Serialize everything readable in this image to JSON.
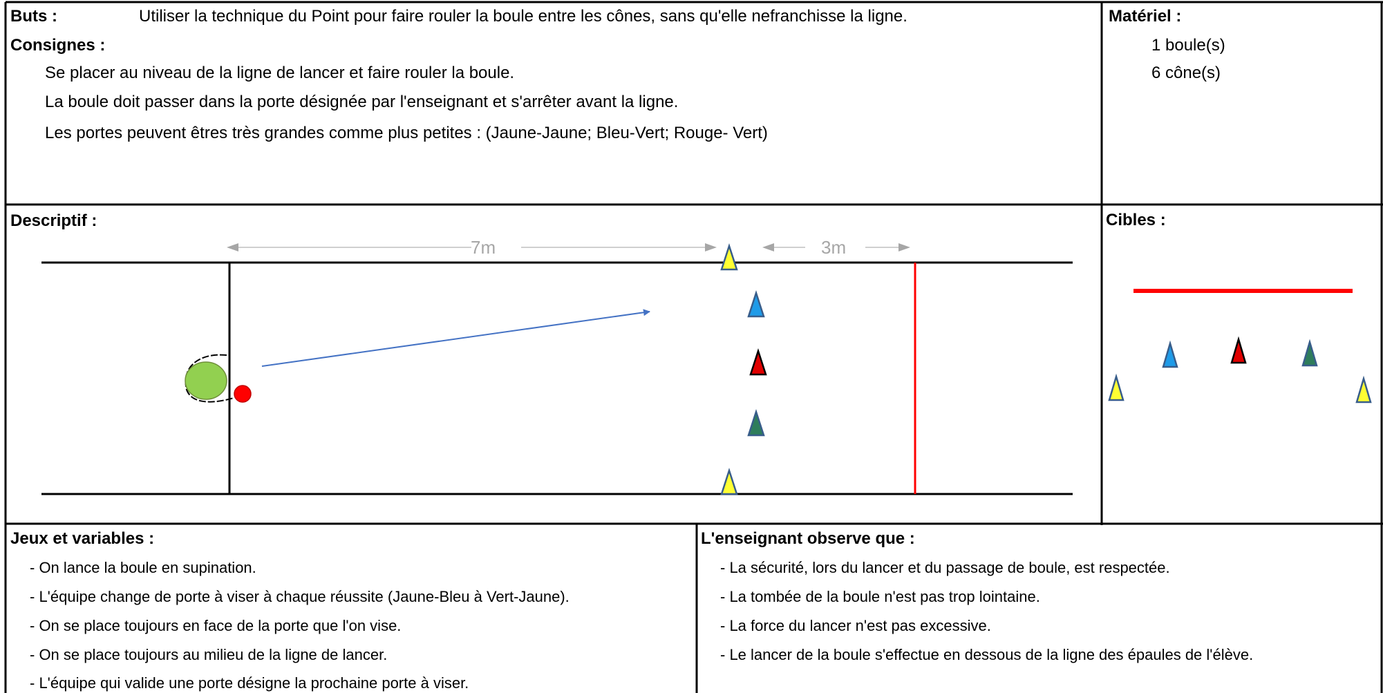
{
  "buts": {
    "label": "Buts :",
    "text": "Utiliser la technique du Point pour faire rouler la boule entre les cônes, sans qu'elle nefranchisse la ligne."
  },
  "consignes": {
    "label": "Consignes :",
    "items": [
      "Se placer au niveau de la ligne de lancer et faire rouler la boule.",
      "La boule doit passer dans la porte désignée par l'enseignant et s'arrêter avant la ligne.",
      "Les portes peuvent êtres très grandes comme plus petites : (Jaune-Jaune; Bleu-Vert; Rouge- Vert)"
    ]
  },
  "materiel": {
    "label": "Matériel :",
    "items": [
      "1 boule(s)",
      "6 cône(s)"
    ]
  },
  "descriptif": {
    "label": "Descriptif :",
    "dist_1": "7m",
    "dist_2": "3m"
  },
  "cibles": {
    "label": "Cibles :"
  },
  "jeux": {
    "label": "Jeux et variables :",
    "items": [
      "- On lance la boule en supination.",
      "- L'équipe change de porte à viser à chaque réussite (Jaune-Bleu à Vert-Jaune).",
      "- On se place toujours en face de la porte que l'on vise.",
      "- On se place toujours au milieu de la ligne de lancer.",
      "- L'équipe qui valide une porte désigne la prochaine porte à viser."
    ]
  },
  "observe": {
    "label": "L'enseignant observe que :",
    "items": [
      "- La sécurité, lors du lancer et du passage de boule, est respectée.",
      "- La tombée de la boule n'est pas trop lointaine.",
      "- La force du lancer n'est pas excessive.",
      "- Le lancer de la boule s'effectue en dessous de la ligne des épaules de l'élève."
    ]
  },
  "colors": {
    "yellow_cone": "#ffff33",
    "blue_cone": "#1f9be8",
    "red_cone": "#e00000",
    "green_cone": "#2e7d5b",
    "player": "#92d050",
    "ball": "#ff0000",
    "arrow": "#4472c4",
    "target_line": "#ff0000",
    "dim": "#a6a6a6"
  },
  "icons": [
    "triangle-cone-icon",
    "circle-player-icon",
    "ball-icon",
    "arrow-icon"
  ]
}
